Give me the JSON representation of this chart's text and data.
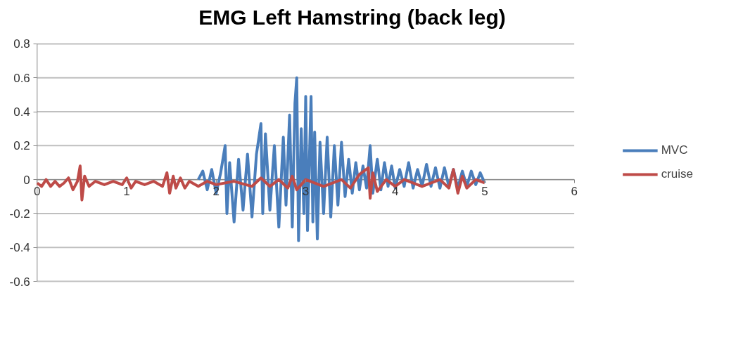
{
  "chart_data": {
    "type": "line",
    "title": "EMG Left Hamstring (back leg)",
    "xlim": [
      0,
      6
    ],
    "xticks": [
      0,
      1,
      2,
      3,
      4,
      5,
      6
    ],
    "ylim": [
      -0.6,
      0.8
    ],
    "yticks": [
      -0.6,
      -0.4,
      -0.2,
      0,
      0.2,
      0.4,
      0.6,
      0.8
    ],
    "grid": "y",
    "legend": "right",
    "marker": "none",
    "line_style": "solid",
    "series": [
      {
        "name": "MVC",
        "color": "#4a7ebb",
        "x": [
          1.8,
          1.85,
          1.9,
          1.95,
          2.0,
          2.05,
          2.1,
          2.12,
          2.15,
          2.2,
          2.25,
          2.3,
          2.35,
          2.4,
          2.45,
          2.5,
          2.52,
          2.55,
          2.6,
          2.65,
          2.7,
          2.75,
          2.78,
          2.82,
          2.85,
          2.88,
          2.9,
          2.92,
          2.95,
          2.98,
          3.0,
          3.02,
          3.06,
          3.08,
          3.1,
          3.13,
          3.16,
          3.2,
          3.24,
          3.28,
          3.32,
          3.36,
          3.4,
          3.44,
          3.48,
          3.52,
          3.56,
          3.6,
          3.64,
          3.68,
          3.72,
          3.75,
          3.8,
          3.84,
          3.88,
          3.92,
          3.96,
          4.0,
          4.05,
          4.1,
          4.15,
          4.2,
          4.25,
          4.3,
          4.35,
          4.4,
          4.45,
          4.5,
          4.55,
          4.6,
          4.65,
          4.7,
          4.75,
          4.8,
          4.85,
          4.9,
          4.95,
          5.0
        ],
        "values": [
          0,
          0.05,
          -0.06,
          0.06,
          -0.08,
          0.04,
          0.2,
          -0.2,
          0.1,
          -0.25,
          0.12,
          -0.18,
          0.15,
          -0.22,
          0.15,
          0.33,
          -0.2,
          0.27,
          -0.18,
          0.2,
          -0.28,
          0.25,
          -0.15,
          0.38,
          -0.28,
          0.45,
          0.6,
          -0.36,
          0.3,
          -0.2,
          0.49,
          -0.3,
          0.49,
          -0.25,
          0.28,
          -0.35,
          0.22,
          -0.2,
          0.25,
          -0.22,
          0.2,
          -0.15,
          0.22,
          -0.1,
          0.12,
          -0.08,
          0.1,
          -0.06,
          0.08,
          -0.05,
          0.2,
          -0.08,
          0.12,
          -0.06,
          0.1,
          -0.04,
          0.08,
          -0.05,
          0.06,
          -0.04,
          0.1,
          -0.05,
          0.06,
          -0.04,
          0.09,
          -0.04,
          0.07,
          -0.05,
          0.07,
          -0.04,
          0.06,
          -0.05,
          0.05,
          -0.04,
          0.05,
          -0.03,
          0.04,
          -0.02
        ]
      },
      {
        "name": "cruise",
        "color": "#be4b48",
        "x": [
          0,
          0.05,
          0.1,
          0.15,
          0.2,
          0.25,
          0.3,
          0.35,
          0.4,
          0.45,
          0.48,
          0.5,
          0.53,
          0.58,
          0.65,
          0.75,
          0.85,
          0.95,
          1.0,
          1.05,
          1.1,
          1.2,
          1.3,
          1.4,
          1.45,
          1.48,
          1.52,
          1.55,
          1.6,
          1.65,
          1.7,
          1.8,
          1.9,
          2.0,
          2.2,
          2.4,
          2.5,
          2.6,
          2.7,
          2.8,
          2.85,
          2.9,
          3.0,
          3.2,
          3.4,
          3.5,
          3.6,
          3.7,
          3.72,
          3.75,
          3.8,
          3.9,
          4.0,
          4.1,
          4.3,
          4.5,
          4.6,
          4.65,
          4.7,
          4.75,
          4.8,
          4.9,
          5.0
        ],
        "values": [
          -0.02,
          -0.04,
          0,
          -0.04,
          -0.01,
          -0.04,
          -0.02,
          0.01,
          -0.06,
          -0.01,
          0.08,
          -0.12,
          0.02,
          -0.04,
          -0.01,
          -0.03,
          -0.01,
          -0.03,
          0.01,
          -0.05,
          -0.01,
          -0.03,
          -0.01,
          -0.04,
          0.04,
          -0.08,
          0.02,
          -0.05,
          0.01,
          -0.05,
          -0.01,
          -0.04,
          -0.01,
          -0.03,
          -0.01,
          -0.04,
          0.01,
          -0.04,
          0,
          -0.05,
          0.02,
          -0.06,
          0,
          -0.04,
          0,
          -0.05,
          0.03,
          0.07,
          -0.11,
          0.04,
          -0.07,
          0,
          -0.04,
          0,
          -0.04,
          0,
          -0.05,
          0.06,
          -0.08,
          0.02,
          -0.05,
          0,
          -0.02
        ]
      }
    ]
  }
}
